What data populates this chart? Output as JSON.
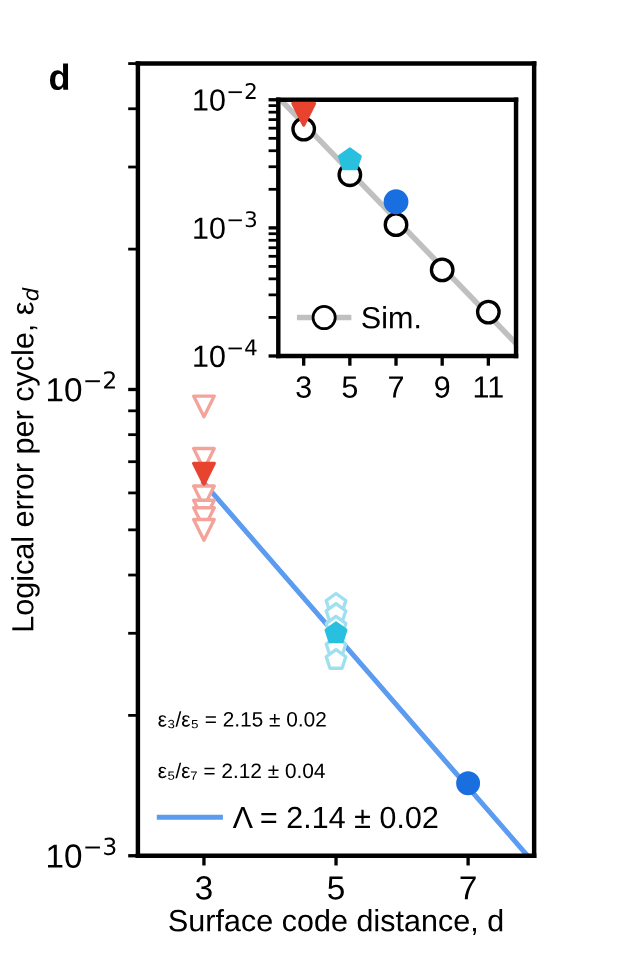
{
  "chart_data": [
    {
      "type": "scatter",
      "title": "d",
      "xlabel": "Surface code distance, d",
      "ylabel": "Logical error per cycle, ε$_{d}$",
      "log": "y",
      "xlim": [
        2,
        8
      ],
      "xticks": [
        3,
        5,
        7
      ],
      "ylim": [
        0.001,
        0.05
      ],
      "yticks": [
        {
          "value": 0.001,
          "label": "10$^{−3}$"
        },
        {
          "value": 0.01,
          "label": "10$^{−2}$"
        }
      ],
      "legend": "bottom left",
      "grid": false,
      "annotations": [
        "ε₃/ε₅ = 2.15 ± 0.02",
        "ε₅/ε₇ = 2.12 ± 0.04"
      ],
      "series": [
        {
          "type": "scatter",
          "marker": "triangle",
          "color": "#f4a39a",
          "x": [
            3,
            3,
            3,
            3,
            3,
            3
          ],
          "values": [
            0.0092,
            0.0071,
            0.0059,
            0.0055,
            0.0053,
            0.005
          ]
        },
        {
          "type": "scatter",
          "color": "#9fe0f0",
          "x": [
            5,
            5,
            5,
            5,
            5
          ],
          "values": [
            0.00347,
            0.0033,
            0.0031,
            0.0028,
            0.00263
          ]
        },
        {
          "type": "line",
          "name": "Λ = 2.14 ± 0.02",
          "color": "#5b9bf0",
          "x": [
            3,
            7.9
          ],
          "values": [
            0.0063,
            0.001
          ]
        },
        {
          "type": "scatter",
          "marker": "triangle",
          "color": "#e8432e",
          "x": [
            3
          ],
          "values": [
            0.0066
          ]
        },
        {
          "type": "scatter",
          "color": "#29c0e0",
          "x": [
            5
          ],
          "values": [
            0.003
          ]
        },
        {
          "type": "scatter",
          "marker": "circle",
          "color": "#1a6fe0",
          "x": [
            7
          ],
          "values": [
            0.00143
          ]
        }
      ]
    },
    {
      "type": "scatter",
      "log": "y",
      "xlim": [
        1.9,
        12.2
      ],
      "xticks": [
        3,
        5,
        7,
        9,
        11
      ],
      "ylim": [
        0.0001,
        0.01
      ],
      "yticks": [
        {
          "value": 0.0001,
          "label": "10$^{−4}$"
        },
        {
          "value": 0.001,
          "label": "10$^{−3}$"
        },
        {
          "value": 0.01,
          "label": "10$^{−2}$"
        }
      ],
      "legend": "bottom left",
      "grid": false,
      "series": [
        {
          "type": "line",
          "color": "#c0c0c0",
          "x": [
            2,
            12.2
          ],
          "values": [
            0.01,
            0.000125
          ]
        },
        {
          "type": "scatter",
          "name": "Sim.",
          "marker": "circle",
          "color": "#000000",
          "x": [
            3,
            5,
            7,
            9,
            11
          ],
          "values": [
            0.0059,
            0.0026,
            0.00106,
            0.00047,
            0.00022
          ]
        },
        {
          "type": "scatter",
          "marker": "triangle",
          "color": "#e8432e",
          "x": [
            3
          ],
          "values": [
            0.0077
          ]
        },
        {
          "type": "scatter",
          "color": "#29c0e0",
          "x": [
            5
          ],
          "values": [
            0.0034
          ]
        },
        {
          "type": "scatter",
          "marker": "circle",
          "color": "#1a6fe0",
          "x": [
            7
          ],
          "values": [
            0.0016
          ]
        }
      ]
    }
  ]
}
